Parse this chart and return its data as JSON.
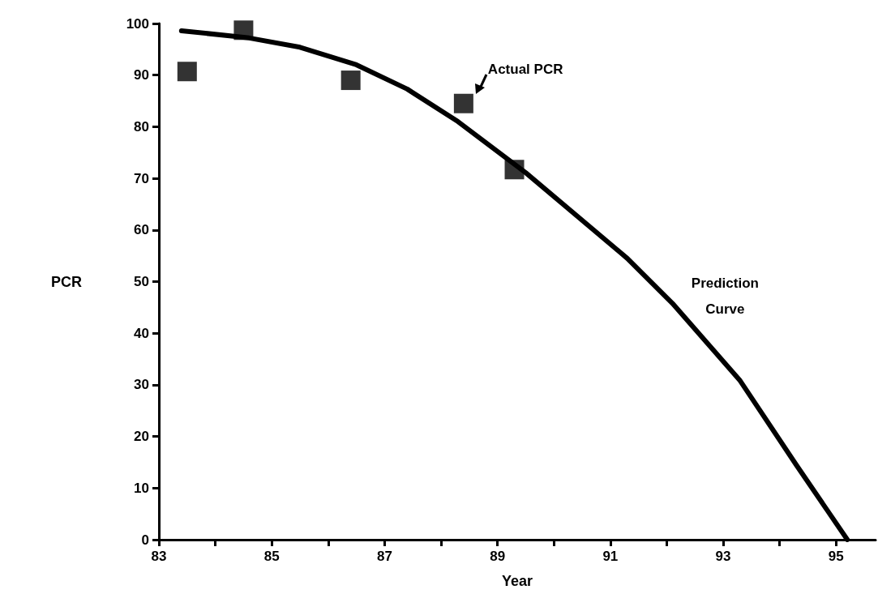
{
  "chart_data": {
    "type": "scatter",
    "xlabel": "Year",
    "ylabel": "PCR",
    "xlim": [
      83,
      95.7
    ],
    "ylim": [
      0,
      100
    ],
    "xticks": [
      83,
      {
        "value": 84,
        "label": null
      },
      85,
      {
        "value": 86,
        "label": null
      },
      87,
      {
        "value": 88,
        "label": null
      },
      89,
      {
        "value": 90,
        "label": null
      },
      91,
      {
        "value": 92,
        "label": null
      },
      93,
      {
        "value": 94,
        "label": null
      },
      95
    ],
    "yticks": [
      0,
      10,
      20,
      30,
      40,
      50,
      60,
      70,
      80,
      90,
      100
    ],
    "series": [
      {
        "name": "Actual PCR",
        "marker": "square",
        "color": "#000000",
        "x": [
          83.5,
          84.5,
          86.4,
          88.4,
          89.3
        ],
        "values": [
          90.7,
          98.7,
          89.0,
          84.5,
          71.7
        ]
      },
      {
        "name": "Prediction Curve",
        "type": "line",
        "marker": "none",
        "line_style": "solid",
        "color": "#000000",
        "x": [
          83.4,
          84.6,
          85.5,
          86.5,
          87.4,
          88.3,
          89.5,
          91.3,
          92.1,
          93.3,
          94.3,
          95.2
        ],
        "values": [
          98.6,
          97.2,
          95.4,
          92.0,
          87.3,
          81.0,
          71.1,
          54.5,
          45.8,
          30.8,
          14.4,
          0
        ]
      }
    ]
  }
}
